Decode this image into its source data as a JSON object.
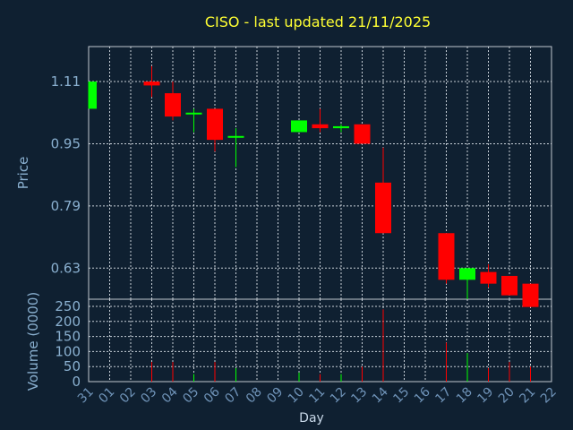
{
  "chart_data": {
    "type": "candlestick",
    "title": "CISO - last updated 21/11/2025",
    "price_panel": {
      "ylabel": "Price",
      "yticks": [
        0.63,
        0.79,
        0.95,
        1.11
      ],
      "ytick_labels": [
        "0.63",
        "0.79",
        "0.95",
        "1.11"
      ],
      "ylim": [
        0.55,
        1.2
      ],
      "grid": true
    },
    "volume_panel": {
      "ylabel": "Volume (0000)",
      "yticks": [
        0,
        50,
        100,
        150,
        200,
        250
      ],
      "ytick_labels": [
        "0",
        "50",
        "100",
        "150",
        "200",
        "250"
      ],
      "ylim": [
        0,
        250
      ],
      "grid": true
    },
    "xlabel": "Day",
    "x_tick_labels": [
      "31",
      "01",
      "02",
      "03",
      "04",
      "05",
      "06",
      "07",
      "08",
      "09",
      "10",
      "11",
      "12",
      "13",
      "14",
      "15",
      "16",
      "17",
      "18",
      "19",
      "20",
      "21",
      "22"
    ],
    "up_color": "#00ff00",
    "down_color": "#ff0000",
    "background": "#0f2031",
    "candles": [
      {
        "day": "31",
        "open": 1.04,
        "high": 1.11,
        "low": 1.04,
        "close": 1.11,
        "volume": 0
      },
      {
        "day": "03",
        "open": 1.11,
        "high": 1.15,
        "low": 1.07,
        "close": 1.1,
        "volume": 65
      },
      {
        "day": "04",
        "open": 1.08,
        "high": 1.11,
        "low": 1.01,
        "close": 1.02,
        "volume": 65
      },
      {
        "day": "05",
        "open": 1.03,
        "high": 1.04,
        "low": 0.98,
        "close": 1.03,
        "volume": 25
      },
      {
        "day": "06",
        "open": 1.04,
        "high": 1.04,
        "low": 0.93,
        "close": 0.96,
        "volume": 65
      },
      {
        "day": "07",
        "open": 0.97,
        "high": 0.99,
        "low": 0.89,
        "close": 0.97,
        "volume": 45
      },
      {
        "day": "10",
        "open": 0.98,
        "high": 1.01,
        "low": 0.98,
        "close": 1.01,
        "volume": 30
      },
      {
        "day": "11",
        "open": 1.0,
        "high": 1.04,
        "low": 0.98,
        "close": 0.99,
        "volume": 25
      },
      {
        "day": "12",
        "open": 0.99,
        "high": 1.0,
        "low": 0.98,
        "close": 0.995,
        "volume": 25
      },
      {
        "day": "13",
        "open": 1.0,
        "high": 1.0,
        "low": 0.95,
        "close": 0.95,
        "volume": 50
      },
      {
        "day": "14",
        "open": 0.85,
        "high": 0.94,
        "low": 0.72,
        "close": 0.72,
        "volume": 240
      },
      {
        "day": "17",
        "open": 0.72,
        "high": 0.72,
        "low": 0.59,
        "close": 0.6,
        "volume": 130
      },
      {
        "day": "18",
        "open": 0.6,
        "high": 0.63,
        "low": 0.55,
        "close": 0.63,
        "volume": 95
      },
      {
        "day": "19",
        "open": 0.62,
        "high": 0.64,
        "low": 0.58,
        "close": 0.59,
        "volume": 45
      },
      {
        "day": "20",
        "open": 0.61,
        "high": 0.61,
        "low": 0.56,
        "close": 0.56,
        "volume": 65
      },
      {
        "day": "21",
        "open": 0.59,
        "high": 0.59,
        "low": 0.53,
        "close": 0.53,
        "volume": 50
      }
    ]
  }
}
